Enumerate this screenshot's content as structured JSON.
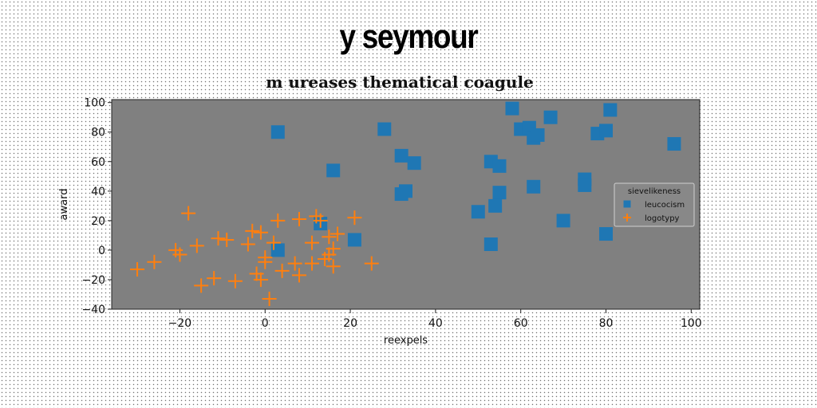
{
  "page_title": "y seymour",
  "chart_data": {
    "type": "scatter",
    "title": "m ureases thematical coagule",
    "xlabel": "reexpels",
    "ylabel": "award",
    "xlim": [
      -36,
      102
    ],
    "ylim": [
      -40,
      102
    ],
    "xticks": [
      -20,
      0,
      20,
      40,
      60,
      80,
      100
    ],
    "yticks": [
      -40,
      -20,
      0,
      20,
      40,
      60,
      80,
      100
    ],
    "grid": false,
    "legend": {
      "title": "sievelikeness",
      "placement": "center-right"
    },
    "colors": {
      "plot_background": "#808080",
      "leucocism": "#1f77b4",
      "logotypy": "#ff7f0e"
    },
    "series": [
      {
        "name": "leucocism",
        "marker": "square",
        "points": [
          [
            3,
            80
          ],
          [
            28,
            82
          ],
          [
            16,
            54
          ],
          [
            32,
            64
          ],
          [
            35,
            59
          ],
          [
            32,
            38
          ],
          [
            33,
            40
          ],
          [
            13,
            18
          ],
          [
            21,
            7
          ],
          [
            3,
            0
          ],
          [
            58,
            96
          ],
          [
            60,
            82
          ],
          [
            62,
            83
          ],
          [
            63,
            76
          ],
          [
            64,
            78
          ],
          [
            67,
            90
          ],
          [
            81,
            95
          ],
          [
            78,
            79
          ],
          [
            80,
            81
          ],
          [
            96,
            72
          ],
          [
            53,
            60
          ],
          [
            55,
            57
          ],
          [
            75,
            48
          ],
          [
            75,
            44
          ],
          [
            55,
            39
          ],
          [
            63,
            43
          ],
          [
            50,
            26
          ],
          [
            54,
            30
          ],
          [
            70,
            20
          ],
          [
            80,
            11
          ],
          [
            53,
            4
          ]
        ]
      },
      {
        "name": "logotypy",
        "marker": "plus",
        "points": [
          [
            -18,
            25
          ],
          [
            -30,
            -13
          ],
          [
            -26,
            -8
          ],
          [
            -21,
            0
          ],
          [
            -20,
            -3
          ],
          [
            -16,
            3
          ],
          [
            -15,
            -24
          ],
          [
            -12,
            -19
          ],
          [
            -11,
            8
          ],
          [
            -9,
            7
          ],
          [
            -7,
            -21
          ],
          [
            -4,
            4
          ],
          [
            -3,
            13
          ],
          [
            -1,
            12
          ],
          [
            -2,
            -16
          ],
          [
            -1,
            -20
          ],
          [
            0,
            -8
          ],
          [
            0,
            -5
          ],
          [
            1,
            -33
          ],
          [
            2,
            5
          ],
          [
            3,
            20
          ],
          [
            4,
            -14
          ],
          [
            7,
            -9
          ],
          [
            8,
            -17
          ],
          [
            8,
            21
          ],
          [
            11,
            5
          ],
          [
            11,
            -9
          ],
          [
            12,
            23
          ],
          [
            13,
            20
          ],
          [
            14,
            -6
          ],
          [
            15,
            9
          ],
          [
            15,
            -3
          ],
          [
            16,
            -11
          ],
          [
            17,
            11
          ],
          [
            16,
            1
          ],
          [
            21,
            22
          ],
          [
            25,
            -9
          ]
        ]
      }
    ]
  }
}
